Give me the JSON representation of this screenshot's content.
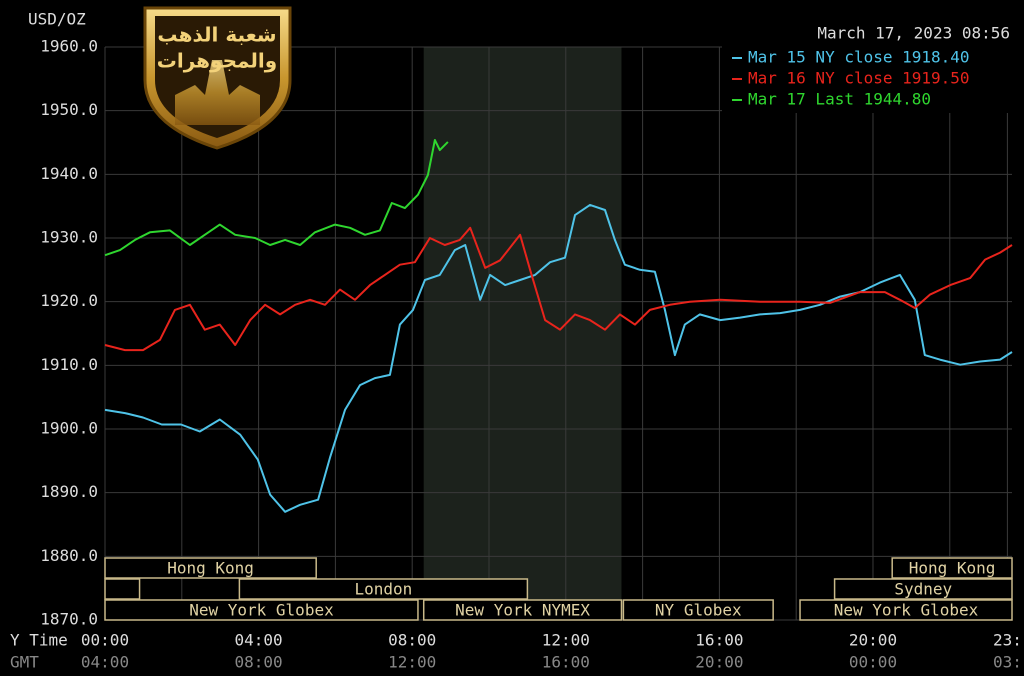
{
  "chart_data": {
    "type": "line",
    "unit_label": "USD/OZ",
    "timestamp": "March 17, 2023 08:56",
    "xlim": [
      0,
      23.62
    ],
    "ylim": [
      1870,
      1960
    ],
    "yticks": [
      {
        "value": 1960,
        "label": "1960.0"
      },
      {
        "value": 1950,
        "label": "1950.0"
      },
      {
        "value": 1940,
        "label": "1940.0"
      },
      {
        "value": 1930,
        "label": "1930.0"
      },
      {
        "value": 1920,
        "label": "1920.0"
      },
      {
        "value": 1910,
        "label": "1910.0"
      },
      {
        "value": 1900,
        "label": "1900.0"
      },
      {
        "value": 1890,
        "label": "1890.0"
      },
      {
        "value": 1880,
        "label": "1880.0"
      },
      {
        "value": 1870,
        "label": "1870.0"
      }
    ],
    "xticks": [
      {
        "value": 0,
        "label": "00:00"
      },
      {
        "value": 4,
        "label": "04:00"
      },
      {
        "value": 8,
        "label": "08:00"
      },
      {
        "value": 12,
        "label": "12:00"
      },
      {
        "value": 16,
        "label": "16:00"
      },
      {
        "value": 20,
        "label": "20:00"
      },
      {
        "value": 23.5,
        "label": "23:"
      }
    ],
    "x_minor_ticks": [
      2,
      6,
      10,
      14,
      18,
      22
    ],
    "x_axis_label": "Y Time",
    "x2_axis_label": "GMT",
    "x2_tick_labels": [
      "04:00",
      "08:00",
      "12:00",
      "16:00",
      "20:00",
      "00:00",
      "03:"
    ],
    "grid": true,
    "series": [
      {
        "name": "Mar 15 NY close 1918.40",
        "color": "#4fc3e8",
        "x": [
          0,
          0.52,
          0.99,
          1.48,
          1.98,
          2.47,
          2.99,
          3.52,
          3.98,
          4.3,
          4.69,
          5.08,
          5.55,
          5.86,
          6.25,
          6.64,
          7.03,
          7.42,
          7.68,
          8.02,
          8.33,
          8.72,
          9.11,
          9.38,
          9.77,
          10.03,
          10.42,
          10.81,
          11.2,
          11.59,
          11.98,
          12.24,
          12.63,
          13.02,
          13.28,
          13.54,
          13.93,
          14.32,
          14.58,
          14.84,
          15.1,
          15.49,
          16.02,
          16.54,
          17.06,
          17.58,
          18.1,
          18.62,
          19.14,
          19.66,
          20.18,
          20.7,
          21.09,
          21.35,
          21.74,
          22.27,
          22.79,
          23.31,
          23.62
        ],
        "values": [
          1903.0,
          1902.5,
          1901.8,
          1900.7,
          1900.7,
          1899.6,
          1901.5,
          1899.1,
          1895.2,
          1889.7,
          1887.0,
          1888.1,
          1888.9,
          1895.5,
          1903.0,
          1906.9,
          1908.0,
          1908.5,
          1916.4,
          1918.7,
          1923.4,
          1924.2,
          1928.1,
          1928.9,
          1920.3,
          1924.2,
          1922.6,
          1923.4,
          1924.2,
          1926.2,
          1926.9,
          1933.6,
          1935.2,
          1934.4,
          1929.7,
          1925.8,
          1925.0,
          1924.7,
          1918.7,
          1911.6,
          1916.4,
          1918.0,
          1917.1,
          1917.5,
          1918.0,
          1918.2,
          1918.7,
          1919.5,
          1920.8,
          1921.5,
          1923.0,
          1924.2,
          1920.3,
          1911.6,
          1910.9,
          1910.1,
          1910.6,
          1910.9,
          1912.1
        ]
      },
      {
        "name": "Mar 16 NY close 1919.50",
        "color": "#e8241c",
        "x": [
          0,
          0.52,
          0.99,
          1.43,
          1.82,
          2.21,
          2.6,
          2.99,
          3.39,
          3.78,
          4.17,
          4.56,
          4.95,
          5.34,
          5.73,
          6.12,
          6.51,
          6.9,
          7.29,
          7.68,
          8.07,
          8.46,
          8.85,
          9.24,
          9.51,
          9.9,
          10.29,
          10.81,
          11.07,
          11.46,
          11.85,
          12.24,
          12.63,
          13.02,
          13.41,
          13.8,
          14.19,
          14.71,
          15.23,
          16.02,
          17.06,
          18.1,
          18.88,
          19.66,
          20.31,
          20.7,
          21.09,
          21.48,
          22.01,
          22.53,
          22.92,
          23.31,
          23.62
        ],
        "values": [
          1913.2,
          1912.4,
          1912.4,
          1914.0,
          1918.7,
          1919.5,
          1915.6,
          1916.4,
          1913.2,
          1917.1,
          1919.5,
          1918.0,
          1919.5,
          1920.3,
          1919.5,
          1921.9,
          1920.3,
          1922.6,
          1924.2,
          1925.8,
          1926.2,
          1930.0,
          1928.9,
          1929.7,
          1931.6,
          1925.3,
          1926.5,
          1930.5,
          1925.0,
          1917.1,
          1915.6,
          1918.0,
          1917.1,
          1915.6,
          1918.0,
          1916.4,
          1918.7,
          1919.5,
          1920.0,
          1920.3,
          1920.0,
          1920.0,
          1919.8,
          1921.5,
          1921.5,
          1920.3,
          1919.0,
          1921.1,
          1922.6,
          1923.7,
          1926.6,
          1927.7,
          1928.9
        ]
      },
      {
        "name": "Mar 17 Last 1944.80",
        "color": "#2fd62f",
        "x": [
          0,
          0.39,
          0.78,
          1.17,
          1.69,
          2.21,
          2.6,
          2.99,
          3.39,
          3.91,
          4.3,
          4.69,
          5.08,
          5.47,
          5.99,
          6.38,
          6.77,
          7.16,
          7.47,
          7.81,
          8.15,
          8.41,
          8.59,
          8.72,
          8.93
        ],
        "values": [
          1927.3,
          1928.1,
          1929.7,
          1930.9,
          1931.2,
          1928.9,
          1930.5,
          1932.1,
          1930.5,
          1930.0,
          1928.9,
          1929.7,
          1928.9,
          1930.9,
          1932.1,
          1931.6,
          1930.5,
          1931.2,
          1935.5,
          1934.7,
          1936.8,
          1939.9,
          1945.4,
          1943.8,
          1945.1
        ]
      }
    ],
    "sessions": [
      {
        "label": "Hong Kong",
        "start": 0,
        "end": 5.5,
        "row": 0
      },
      {
        "label": "Hong Kong",
        "start": 20.5,
        "end": 23.62,
        "row": 0
      },
      {
        "start": 0,
        "end": 0.9,
        "row": 1
      },
      {
        "label": "London",
        "start": 3.5,
        "end": 11,
        "row": 1
      },
      {
        "label": "Sydney",
        "start": 19,
        "end": 23.62,
        "row": 1
      },
      {
        "label": "New York Globex",
        "start": 0,
        "end": 8.15,
        "row": 2
      },
      {
        "label": "New York NYMEX",
        "start": 8.3,
        "end": 13.45,
        "row": 2,
        "shaded": true
      },
      {
        "label": "NY Globex",
        "start": 13.5,
        "end": 17.4,
        "row": 2
      },
      {
        "label": "New York Globex",
        "start": 18.1,
        "end": 23.62,
        "row": 2
      }
    ]
  },
  "logo": {
    "lines": [
      "شعبة الذهب",
      "والمجوهرات"
    ]
  }
}
